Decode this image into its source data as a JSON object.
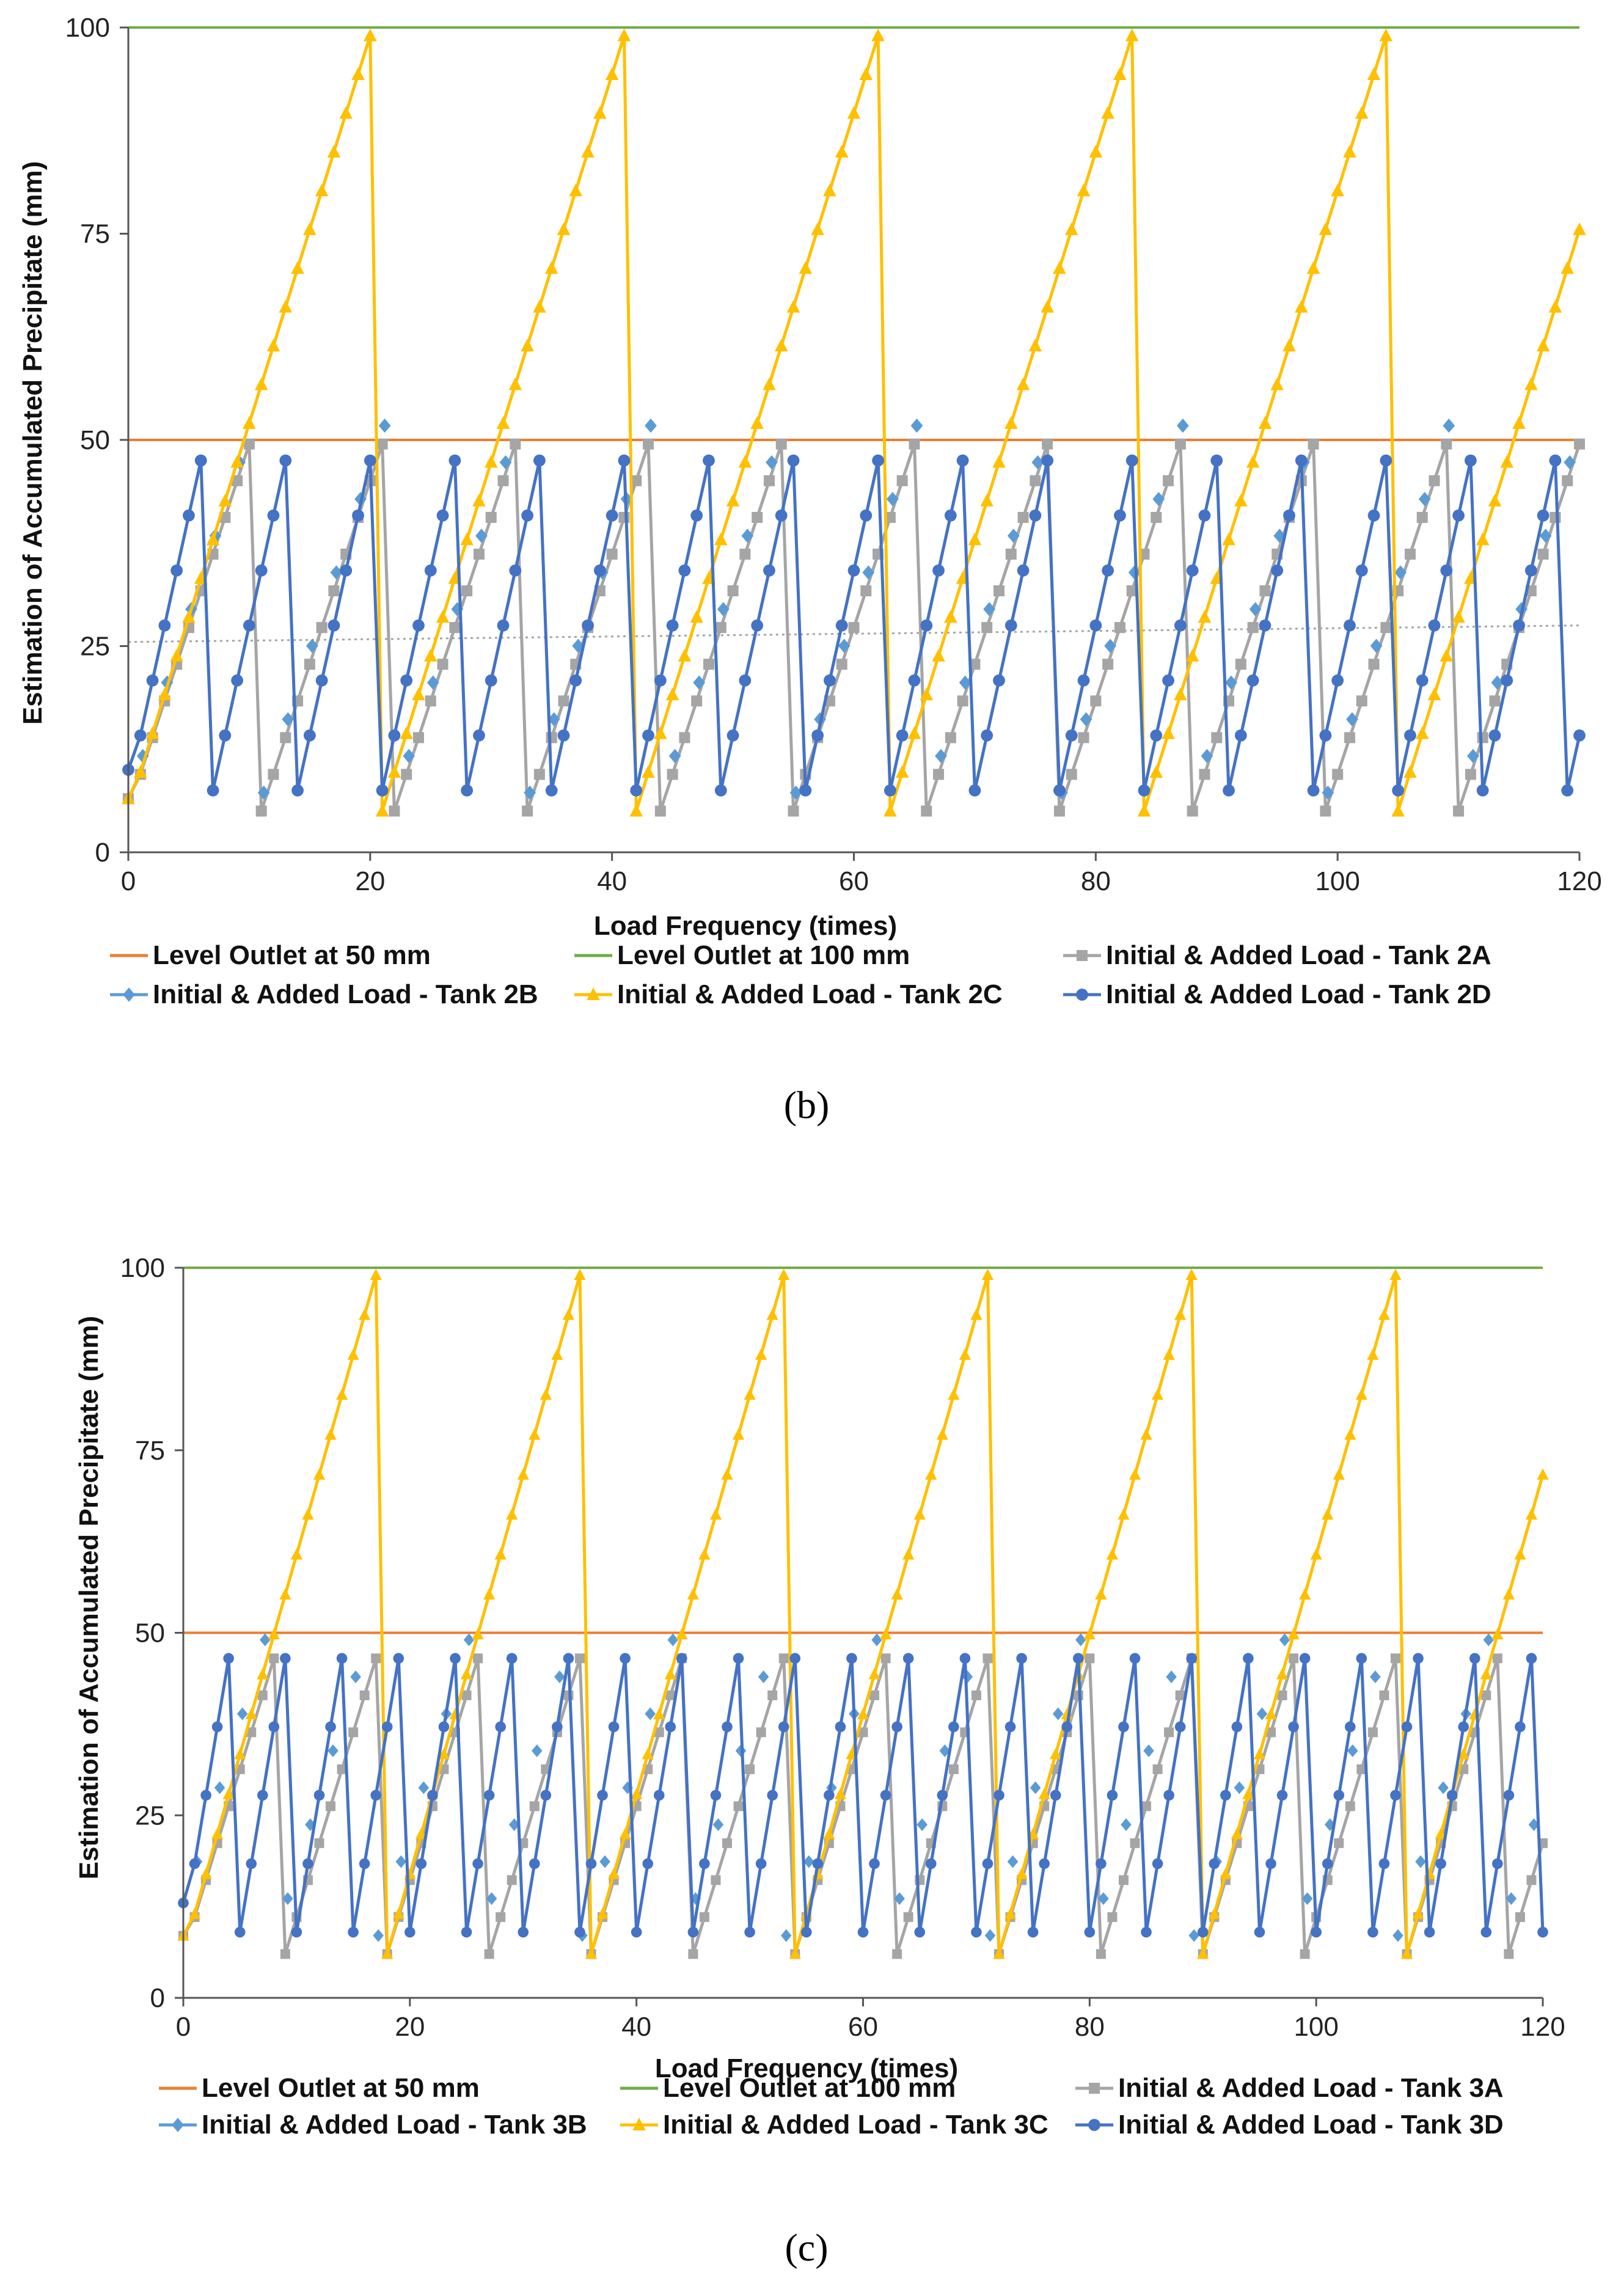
{
  "chart_data": [
    {
      "type": "line",
      "panel_label": "b",
      "xlabel": "Load Frequency (times)",
      "ylabel": "Estimation of Accumulated Precipitate (mm)",
      "xlim": [
        0,
        120
      ],
      "ylim": [
        0,
        100
      ],
      "xticks": [
        "0",
        "20",
        "40",
        "60",
        "80",
        "100",
        "120"
      ],
      "yticks": [
        "0",
        "25",
        "50",
        "75",
        "100"
      ],
      "series": [
        {
          "name": "Level Outlet at 50 mm",
          "color": "#ED7D31",
          "marker": "none",
          "kind": "hline",
          "value": 50
        },
        {
          "name": "Level Outlet at 100 mm",
          "color": "#70AD47",
          "marker": "none",
          "kind": "hline",
          "value": 100
        },
        {
          "name": "Initial & Added Load - Tank 2A",
          "color": "#A5A5A5",
          "marker": "square",
          "kind": "saw",
          "start": 6.5,
          "low": 5,
          "step": 4.9,
          "n": 10,
          "peak": 49.5
        },
        {
          "name": "Initial & Added Load - Tank 2B",
          "color": "#5B9BD5",
          "marker": "diamond",
          "kind": "saw-dots",
          "start": 7,
          "low": 5,
          "step": 4.9,
          "n": 10,
          "peak": 49.5
        },
        {
          "name": "Initial & Added Load - Tank 2C",
          "color": "#FFC000",
          "marker": "triangle",
          "kind": "saw",
          "start": 6.5,
          "low": 5,
          "step": 4.9,
          "n": 20,
          "peak": 99
        },
        {
          "name": "Initial & Added Load - Tank 2D",
          "color": "#4472C4",
          "marker": "circle",
          "kind": "saw",
          "start": 10,
          "low": 7.5,
          "step": 7.9,
          "n": 6,
          "peak": 47.5
        }
      ],
      "trendline": {
        "color": "#A5A5A5",
        "from": [
          0,
          25.5
        ],
        "to": [
          120,
          27.5
        ]
      }
    },
    {
      "type": "line",
      "panel_label": "c",
      "xlabel": "Load Frequency (times)",
      "ylabel": "Estimation of Accumulated Precipitate (mm)",
      "xlim": [
        0,
        120
      ],
      "ylim": [
        0,
        100
      ],
      "xticks": [
        "0",
        "20",
        "40",
        "60",
        "80",
        "100",
        "120"
      ],
      "yticks": [
        "0",
        "25",
        "50",
        "75",
        "100"
      ],
      "series": [
        {
          "name": "Level Outlet at 50 mm",
          "color": "#ED7D31",
          "marker": "none",
          "kind": "hline",
          "value": 50
        },
        {
          "name": "Level Outlet at 100 mm",
          "color": "#70AD47",
          "marker": "none",
          "kind": "hline",
          "value": 100
        },
        {
          "name": "Initial & Added Load - Tank 3A",
          "color": "#A5A5A5",
          "marker": "square",
          "kind": "saw",
          "start": 8.5,
          "low": 6,
          "step": 5.8,
          "n": 8,
          "peak": 46.5
        },
        {
          "name": "Initial & Added Load - Tank 3B",
          "color": "#5B9BD5",
          "marker": "diamond",
          "kind": "saw-dots",
          "start": 9,
          "low": 6,
          "step": 5.8,
          "n": 8,
          "peak": 46.5
        },
        {
          "name": "Initial & Added Load - Tank 3C",
          "color": "#FFC000",
          "marker": "triangle",
          "kind": "saw",
          "start": 8.5,
          "low": 6,
          "step": 5.5,
          "n": 17,
          "peak": 99
        },
        {
          "name": "Initial & Added Load - Tank 3D",
          "color": "#4472C4",
          "marker": "circle",
          "kind": "saw",
          "start": 13,
          "low": 9,
          "step": 9.4,
          "n": 4,
          "peak": 46.5
        }
      ],
      "trendline": null
    }
  ],
  "captions": [
    "(b)",
    "(c)"
  ]
}
